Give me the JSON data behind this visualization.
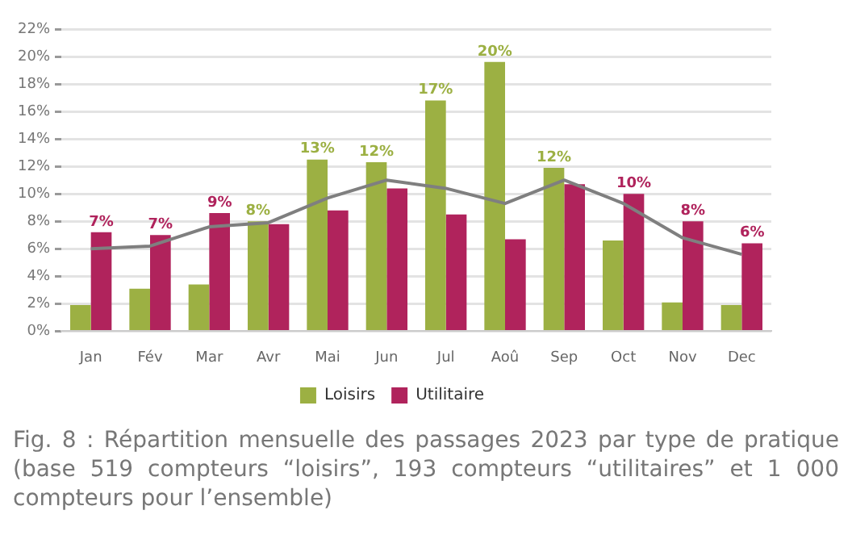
{
  "chart_data": {
    "type": "bar",
    "categories": [
      "Jan",
      "Fév",
      "Mar",
      "Avr",
      "Mai",
      "Jun",
      "Jul",
      "Aoû",
      "Sep",
      "Oct",
      "Nov",
      "Dec"
    ],
    "series": [
      {
        "name": "Loisirs",
        "color": "#9cb043",
        "values": [
          1.9,
          3.1,
          3.4,
          8.0,
          12.5,
          12.3,
          16.8,
          19.6,
          11.9,
          6.6,
          2.1,
          1.9
        ],
        "value_labels": [
          null,
          null,
          null,
          "8%",
          "13%",
          "12%",
          "17%",
          "20%",
          "12%",
          null,
          null,
          null
        ]
      },
      {
        "name": "Utilitaire",
        "color": "#b0235c",
        "values": [
          7.2,
          7.0,
          8.6,
          7.8,
          8.8,
          10.4,
          8.5,
          6.7,
          10.7,
          10.0,
          8.0,
          6.4
        ],
        "value_labels": [
          "7%",
          "7%",
          "9%",
          null,
          null,
          null,
          null,
          null,
          null,
          "10%",
          "8%",
          "6%"
        ]
      },
      {
        "type": "line",
        "color": "#7f7f7f",
        "values": [
          6.0,
          6.2,
          7.6,
          7.9,
          9.7,
          11.0,
          10.4,
          9.3,
          11.0,
          9.3,
          6.8,
          5.6
        ],
        "marker": "none"
      }
    ],
    "ylim": [
      0,
      22
    ],
    "yticks": [
      {
        "value": 0,
        "label": "0%"
      },
      {
        "value": 2,
        "label": "2%"
      },
      {
        "value": 4,
        "label": "4%"
      },
      {
        "value": 6,
        "label": "6%"
      },
      {
        "value": 8,
        "label": "8%"
      },
      {
        "value": 10,
        "label": "10%"
      },
      {
        "value": 12,
        "label": "12%"
      },
      {
        "value": 14,
        "label": "14%"
      },
      {
        "value": 16,
        "label": "16%"
      },
      {
        "value": 18,
        "label": "18%"
      },
      {
        "value": 20,
        "label": "20%"
      },
      {
        "value": 22,
        "label": "22%"
      }
    ],
    "grid": "y",
    "legend": "bottom",
    "annotations": [
      "Fig. 8 : Répartition mensuelle des passages 2023 par type de pratique (base 519 compteurs “loisirs”, 193 compteurs “utilitaires” et 1 000 compteurs pour l’ensemble)"
    ]
  }
}
